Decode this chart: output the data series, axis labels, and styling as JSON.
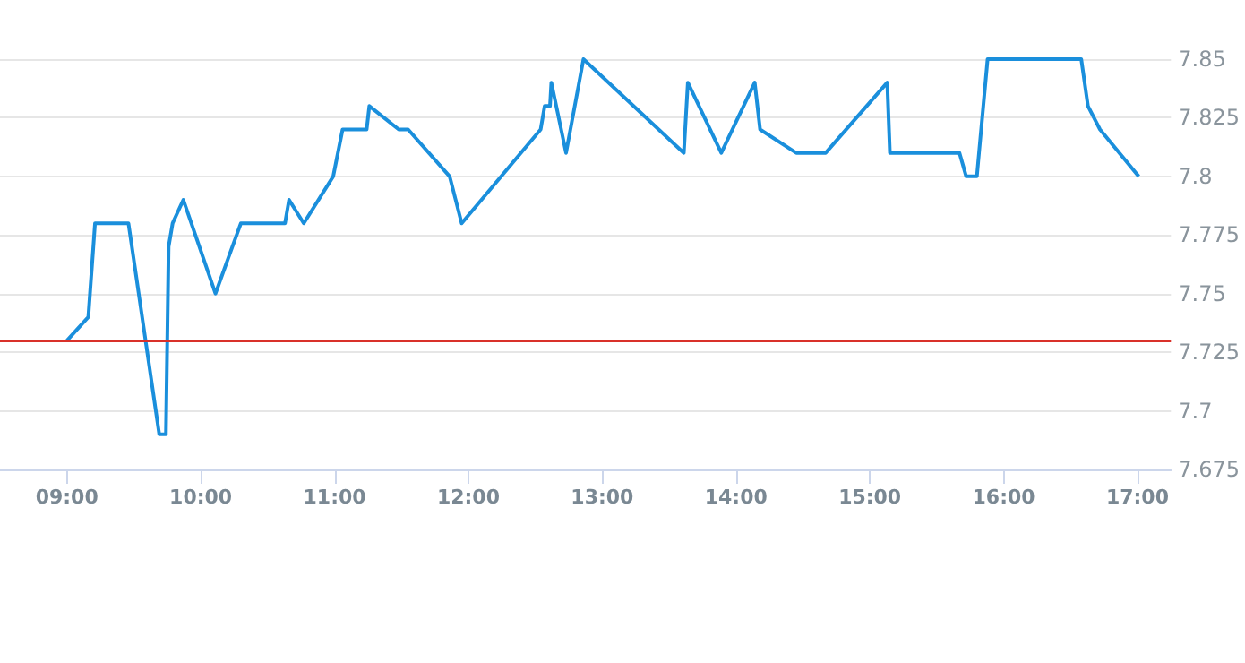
{
  "chart_data": {
    "type": "line",
    "x": [
      9.0,
      9.16,
      9.21,
      9.46,
      9.69,
      9.74,
      9.76,
      9.79,
      9.87,
      10.11,
      10.3,
      10.63,
      10.66,
      10.77,
      10.99,
      11.06,
      11.24,
      11.26,
      11.48,
      11.55,
      11.86,
      11.95,
      12.54,
      12.57,
      12.61,
      12.62,
      12.73,
      12.86,
      13.61,
      13.64,
      13.89,
      14.14,
      14.18,
      14.45,
      14.67,
      15.13,
      15.15,
      15.67,
      15.72,
      15.8,
      15.88,
      16.58,
      16.63,
      16.72,
      17.01
    ],
    "series": [
      {
        "color": "#1a8fdc",
        "values": [
          7.73,
          7.74,
          7.78,
          7.78,
          7.69,
          7.69,
          7.77,
          7.78,
          7.79,
          7.75,
          7.78,
          7.78,
          7.79,
          7.78,
          7.8,
          7.82,
          7.82,
          7.83,
          7.82,
          7.82,
          7.8,
          7.78,
          7.82,
          7.83,
          7.83,
          7.84,
          7.81,
          7.85,
          7.81,
          7.84,
          7.81,
          7.84,
          7.82,
          7.81,
          7.81,
          7.84,
          7.81,
          7.81,
          7.8,
          7.8,
          7.85,
          7.85,
          7.83,
          7.82,
          7.8
        ]
      }
    ],
    "xlim": [
      8.5,
      17.25
    ],
    "xticks": [
      {
        "value": 9,
        "label": "09:00"
      },
      {
        "value": 10,
        "label": "10:00"
      },
      {
        "value": 11,
        "label": "11:00"
      },
      {
        "value": 12,
        "label": "12:00"
      },
      {
        "value": 13,
        "label": "13:00"
      },
      {
        "value": 14,
        "label": "14:00"
      },
      {
        "value": 15,
        "label": "15:00"
      },
      {
        "value": 16,
        "label": "16:00"
      },
      {
        "value": 17,
        "label": "17:00"
      }
    ],
    "ylim": [
      7.675,
      7.85
    ],
    "yticks": [
      7.675,
      7.7,
      7.725,
      7.75,
      7.775,
      7.8,
      7.825,
      7.85
    ],
    "grid": "y",
    "marker": "none",
    "line_style": "solid",
    "ref_lines": [
      {
        "axis": "y",
        "value": 7.73,
        "color": "#d9312a"
      }
    ]
  }
}
